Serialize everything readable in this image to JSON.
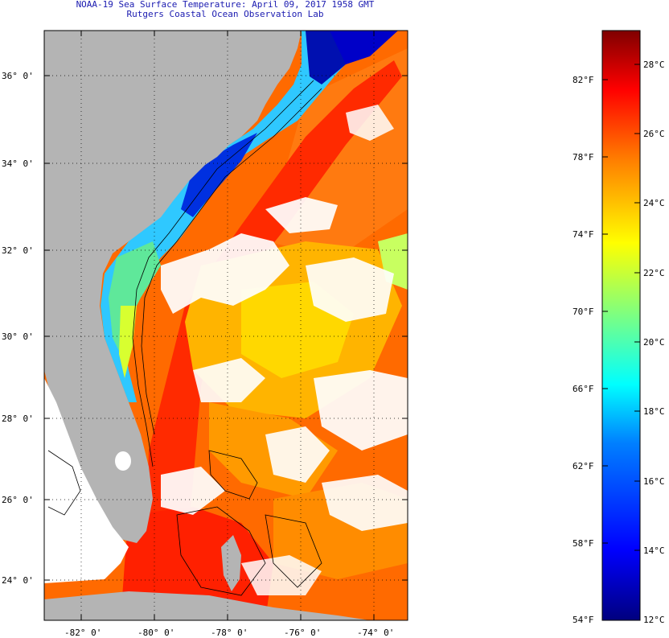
{
  "header": {
    "line1": "NOAA-19 Sea Surface Temperature:  April 09, 2017 1958 GMT",
    "line2": "Rutgers Coastal Ocean Observation Lab"
  },
  "map": {
    "lat_labels": [
      "36° 0'",
      "34° 0'",
      "32° 0'",
      "30° 0'",
      "28° 0'",
      "26° 0'",
      "24° 0'"
    ],
    "lon_labels": [
      "-82° 0'",
      "-80° 0'",
      "-78° 0'",
      "-76° 0'",
      "-74° 0'"
    ]
  },
  "colorbar": {
    "fahrenheit_labels": [
      "82°F",
      "78°F",
      "74°F",
      "70°F",
      "66°F",
      "62°F",
      "58°F",
      "54°F"
    ],
    "celsius_labels": [
      "28°C",
      "26°C",
      "24°C",
      "22°C",
      "20°C",
      "18°C",
      "16°C",
      "14°C",
      "12°C"
    ],
    "range_celsius": [
      12,
      29.5
    ],
    "colors": [
      "#00007f",
      "#0000ff",
      "#007fff",
      "#00ffff",
      "#7fff7f",
      "#ffff00",
      "#ff7f00",
      "#ff0000",
      "#7f0000"
    ]
  },
  "colors": {
    "land": "#b4b4b4",
    "cloud": "#ffffff",
    "title_text": "#1a1ab0"
  }
}
